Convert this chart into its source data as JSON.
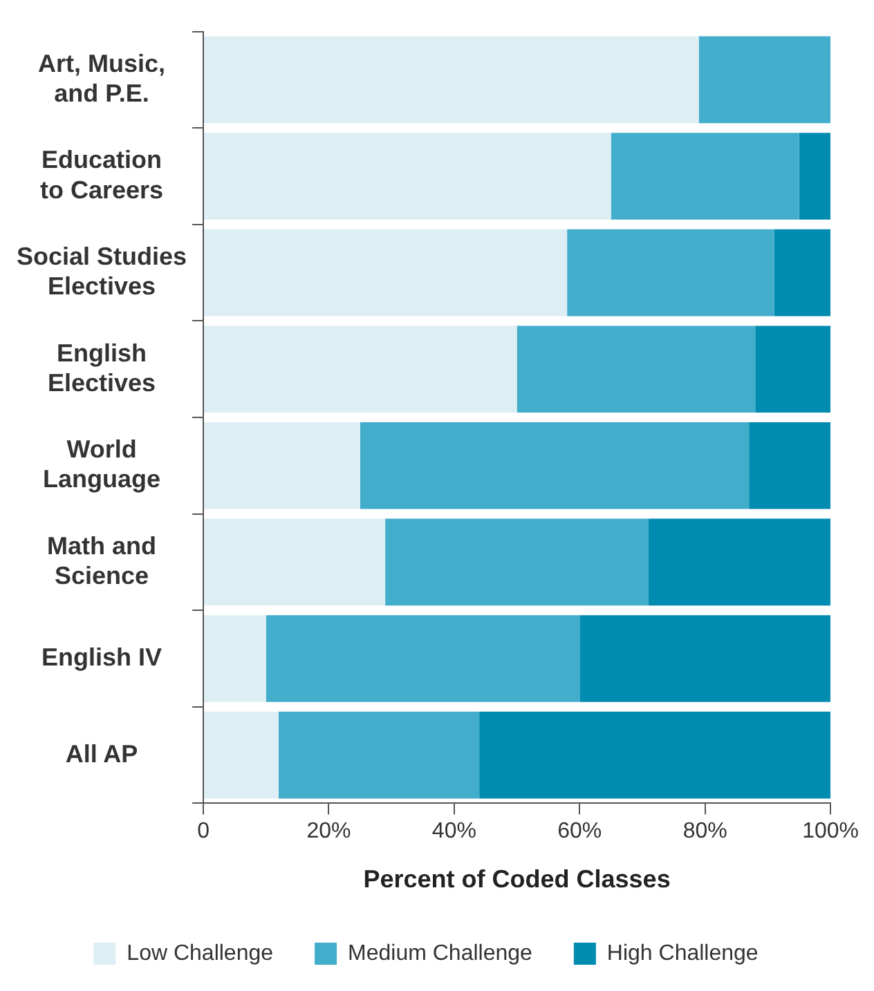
{
  "chart_data": {
    "type": "bar",
    "orientation": "horizontal",
    "stacked": true,
    "categories": [
      "Art, Music,\nand P.E.",
      "Education\nto Careers",
      "Social Studies\nElectives",
      "English\nElectives",
      "World\nLanguage",
      "Math and\nScience",
      "English IV",
      "All AP"
    ],
    "series": [
      {
        "name": "Low Challenge",
        "color": "#ddeef5",
        "values": [
          79,
          65,
          58,
          50,
          25,
          29,
          10,
          12
        ]
      },
      {
        "name": "Medium Challenge",
        "color": "#43adcc",
        "values": [
          21,
          30,
          33,
          38,
          62,
          42,
          50,
          32
        ]
      },
      {
        "name": "High Challenge",
        "color": "#008bb0",
        "values": [
          0,
          5,
          9,
          12,
          13,
          29,
          40,
          56
        ]
      }
    ],
    "xlabel": "Percent of Coded Classes",
    "xlim": [
      0,
      100
    ],
    "xticks": [
      0,
      {
        "value": 20,
        "label": "20%"
      },
      {
        "value": 40,
        "label": "40%"
      },
      {
        "value": 60,
        "label": "60%"
      },
      {
        "value": 80,
        "label": "80%"
      },
      {
        "value": 100,
        "label": "100%"
      }
    ],
    "grid": false,
    "legend": "bottom"
  }
}
